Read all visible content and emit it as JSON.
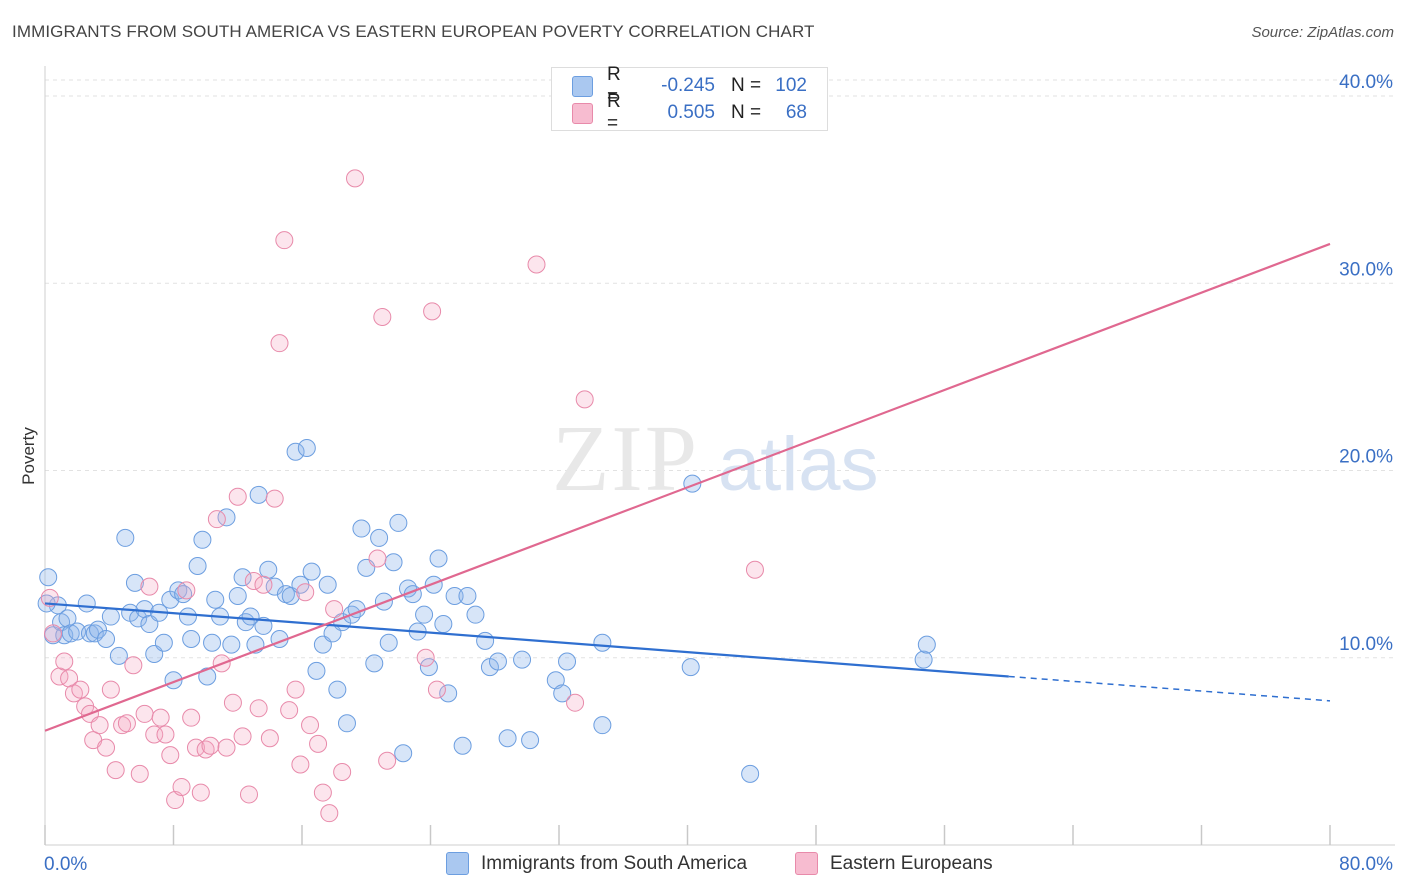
{
  "header": {
    "title": "IMMIGRANTS FROM SOUTH AMERICA VS EASTERN EUROPEAN POVERTY CORRELATION CHART",
    "source": "Source: ZipAtlas.com"
  },
  "watermark": {
    "zip": "ZIP",
    "atlas": "atlas"
  },
  "legend": {
    "rows": [
      {
        "r_label": "R =",
        "r_value": "-0.245",
        "n_label": "N =",
        "n_value": "102",
        "color": "#aac8f0",
        "border": "#6c9ee0"
      },
      {
        "r_label": "R =",
        "r_value": "0.505",
        "n_label": "N =",
        "n_value": "68",
        "color": "#f7bcd0",
        "border": "#e88aaa"
      }
    ]
  },
  "bottom_legend": {
    "series1": "Immigrants from South America",
    "series2": "Eastern Europeans"
  },
  "colors": {
    "blue_fill": "rgba(140,180,235,0.35)",
    "blue_stroke": "#6c9ee0",
    "blue_line": "#2f6fd0",
    "pink_fill": "rgba(245,170,195,0.30)",
    "pink_stroke": "#e88aaa",
    "pink_line": "#e06890",
    "axis_text": "#3a6fc4"
  },
  "chart_data": {
    "type": "scatter",
    "title": "IMMIGRANTS FROM SOUTH AMERICA VS EASTERN EUROPEAN POVERTY CORRELATION CHART",
    "xlabel": "",
    "ylabel": "Poverty",
    "xlim": [
      0,
      80
    ],
    "ylim": [
      0,
      40
    ],
    "x_tick_labels": [
      "0.0%",
      "80.0%"
    ],
    "y_ticks": [
      10,
      20,
      30,
      40
    ],
    "y_tick_labels": [
      "10.0%",
      "20.0%",
      "30.0%",
      "40.0%"
    ],
    "grid": true,
    "legend_position": "top-center",
    "series": [
      {
        "name": "Immigrants from South America",
        "R": -0.245,
        "N": 102,
        "trend": {
          "x0": 0,
          "y0": 12.9,
          "x1": 60,
          "y1": 9.0,
          "dashed_to_x": 80,
          "dashed_to_y": 7.7
        },
        "points": [
          [
            0.2,
            14.3
          ],
          [
            0.5,
            11.2
          ],
          [
            0.8,
            12.8
          ],
          [
            1.0,
            11.9
          ],
          [
            1.2,
            11.2
          ],
          [
            1.4,
            12.1
          ],
          [
            1.6,
            11.3
          ],
          [
            2.0,
            11.4
          ],
          [
            2.6,
            12.9
          ],
          [
            2.8,
            11.3
          ],
          [
            3.1,
            11.3
          ],
          [
            3.3,
            11.5
          ],
          [
            3.8,
            11.0
          ],
          [
            4.1,
            12.2
          ],
          [
            4.6,
            10.1
          ],
          [
            5.0,
            16.4
          ],
          [
            5.3,
            12.4
          ],
          [
            5.6,
            14.0
          ],
          [
            5.8,
            12.1
          ],
          [
            6.2,
            12.6
          ],
          [
            6.5,
            11.8
          ],
          [
            6.8,
            10.2
          ],
          [
            7.1,
            12.4
          ],
          [
            7.4,
            10.8
          ],
          [
            7.8,
            13.1
          ],
          [
            8.0,
            8.8
          ],
          [
            8.3,
            13.6
          ],
          [
            8.6,
            13.4
          ],
          [
            8.9,
            12.2
          ],
          [
            9.1,
            11.0
          ],
          [
            9.5,
            14.9
          ],
          [
            9.8,
            16.3
          ],
          [
            10.1,
            9.0
          ],
          [
            10.4,
            10.8
          ],
          [
            10.6,
            13.1
          ],
          [
            10.9,
            12.2
          ],
          [
            11.3,
            17.5
          ],
          [
            11.6,
            10.7
          ],
          [
            12.0,
            13.3
          ],
          [
            12.3,
            14.3
          ],
          [
            12.5,
            11.9
          ],
          [
            12.8,
            12.2
          ],
          [
            13.1,
            10.7
          ],
          [
            13.3,
            18.7
          ],
          [
            13.6,
            11.7
          ],
          [
            13.9,
            14.7
          ],
          [
            14.3,
            13.8
          ],
          [
            14.6,
            11.0
          ],
          [
            15.0,
            13.4
          ],
          [
            15.3,
            13.3
          ],
          [
            15.6,
            21.0
          ],
          [
            15.9,
            13.9
          ],
          [
            16.3,
            21.2
          ],
          [
            16.6,
            14.6
          ],
          [
            16.9,
            9.3
          ],
          [
            17.3,
            10.7
          ],
          [
            17.6,
            13.9
          ],
          [
            17.9,
            11.3
          ],
          [
            18.2,
            8.3
          ],
          [
            18.5,
            11.9
          ],
          [
            18.8,
            6.5
          ],
          [
            19.1,
            12.3
          ],
          [
            19.4,
            12.6
          ],
          [
            19.7,
            16.9
          ],
          [
            20.0,
            14.8
          ],
          [
            20.5,
            9.7
          ],
          [
            20.8,
            16.4
          ],
          [
            21.1,
            13.0
          ],
          [
            21.4,
            10.8
          ],
          [
            21.7,
            15.1
          ],
          [
            22.0,
            17.2
          ],
          [
            22.3,
            4.9
          ],
          [
            22.6,
            13.7
          ],
          [
            22.9,
            13.4
          ],
          [
            23.2,
            11.4
          ],
          [
            23.6,
            12.3
          ],
          [
            23.9,
            9.5
          ],
          [
            24.2,
            13.9
          ],
          [
            24.5,
            15.3
          ],
          [
            24.8,
            11.8
          ],
          [
            25.1,
            8.1
          ],
          [
            25.5,
            13.3
          ],
          [
            26.0,
            5.3
          ],
          [
            26.3,
            13.3
          ],
          [
            26.8,
            12.3
          ],
          [
            27.4,
            10.9
          ],
          [
            27.7,
            9.5
          ],
          [
            28.2,
            9.8
          ],
          [
            28.8,
            5.7
          ],
          [
            29.7,
            9.9
          ],
          [
            30.2,
            5.6
          ],
          [
            31.8,
            8.8
          ],
          [
            32.2,
            8.1
          ],
          [
            32.5,
            9.8
          ],
          [
            34.7,
            6.4
          ],
          [
            34.7,
            10.8
          ],
          [
            40.2,
            9.5
          ],
          [
            40.3,
            19.3
          ],
          [
            43.9,
            3.8
          ],
          [
            54.7,
            9.9
          ],
          [
            54.9,
            10.7
          ],
          [
            0.1,
            12.9
          ]
        ]
      },
      {
        "name": "Eastern Europeans",
        "R": 0.505,
        "N": 68,
        "trend": {
          "x0": 0,
          "y0": 6.1,
          "x1": 80,
          "y1": 32.1
        },
        "points": [
          [
            0.3,
            13.2
          ],
          [
            0.5,
            11.3
          ],
          [
            0.9,
            9.0
          ],
          [
            1.2,
            9.8
          ],
          [
            1.5,
            8.9
          ],
          [
            1.8,
            8.1
          ],
          [
            2.2,
            8.3
          ],
          [
            2.5,
            7.4
          ],
          [
            2.8,
            7.0
          ],
          [
            3.0,
            5.6
          ],
          [
            3.4,
            6.4
          ],
          [
            3.8,
            5.2
          ],
          [
            4.1,
            8.3
          ],
          [
            4.4,
            4.0
          ],
          [
            4.8,
            6.4
          ],
          [
            5.1,
            6.5
          ],
          [
            5.5,
            9.6
          ],
          [
            5.9,
            3.8
          ],
          [
            6.2,
            7.0
          ],
          [
            6.5,
            13.8
          ],
          [
            6.8,
            5.9
          ],
          [
            7.2,
            6.8
          ],
          [
            7.5,
            5.9
          ],
          [
            7.8,
            4.8
          ],
          [
            8.1,
            2.4
          ],
          [
            8.5,
            3.1
          ],
          [
            8.8,
            13.6
          ],
          [
            9.1,
            6.8
          ],
          [
            9.4,
            5.2
          ],
          [
            9.7,
            2.8
          ],
          [
            10.0,
            5.1
          ],
          [
            10.3,
            5.3
          ],
          [
            10.7,
            17.4
          ],
          [
            11.0,
            9.7
          ],
          [
            11.3,
            5.2
          ],
          [
            11.7,
            7.6
          ],
          [
            12.0,
            18.6
          ],
          [
            12.3,
            5.8
          ],
          [
            12.7,
            2.7
          ],
          [
            13.0,
            14.1
          ],
          [
            13.3,
            7.3
          ],
          [
            13.6,
            13.9
          ],
          [
            14.0,
            5.7
          ],
          [
            14.3,
            18.5
          ],
          [
            14.6,
            26.8
          ],
          [
            14.9,
            32.3
          ],
          [
            15.2,
            7.2
          ],
          [
            15.6,
            8.3
          ],
          [
            15.9,
            4.3
          ],
          [
            16.2,
            13.5
          ],
          [
            16.5,
            6.4
          ],
          [
            17.0,
            5.4
          ],
          [
            17.3,
            2.8
          ],
          [
            17.7,
            1.7
          ],
          [
            18.0,
            12.6
          ],
          [
            18.5,
            3.9
          ],
          [
            19.3,
            35.6
          ],
          [
            20.7,
            15.3
          ],
          [
            21.0,
            28.2
          ],
          [
            21.3,
            4.5
          ],
          [
            23.7,
            10.0
          ],
          [
            24.1,
            28.5
          ],
          [
            24.4,
            8.3
          ],
          [
            30.6,
            31.0
          ],
          [
            33.0,
            7.6
          ],
          [
            33.6,
            23.8
          ],
          [
            40.2,
            39.9
          ],
          [
            44.2,
            14.7
          ]
        ]
      }
    ]
  }
}
